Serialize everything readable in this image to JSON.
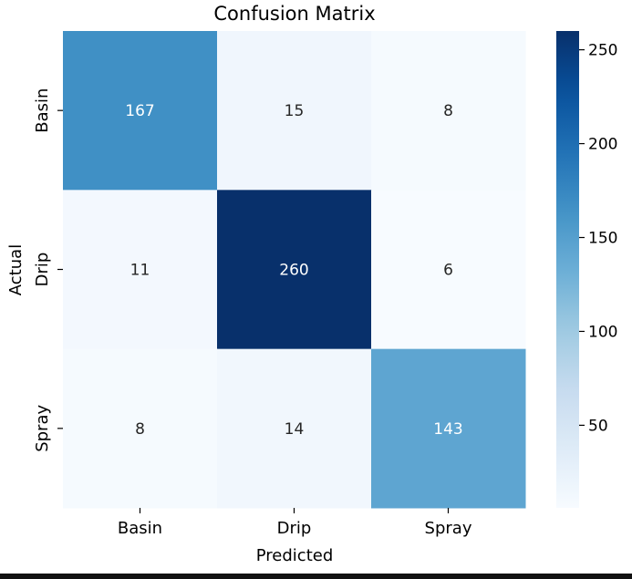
{
  "chart_data": {
    "type": "heatmap",
    "title": "Confusion Matrix",
    "xlabel": "Predicted",
    "ylabel": "Actual",
    "x_categories": [
      "Basin",
      "Drip",
      "Spray"
    ],
    "y_categories": [
      "Basin",
      "Drip",
      "Spray"
    ],
    "values": [
      [
        167,
        15,
        8
      ],
      [
        11,
        260,
        6
      ],
      [
        8,
        14,
        143
      ]
    ],
    "colormap": "Blues",
    "color_range": [
      6,
      260
    ],
    "colorbar_ticks": [
      50,
      100,
      150,
      200,
      250
    ],
    "grid": false
  }
}
